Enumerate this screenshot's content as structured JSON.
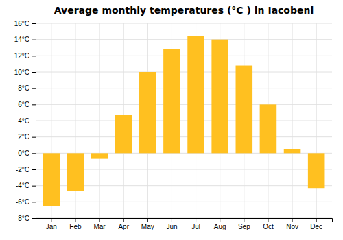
{
  "chart_data": {
    "type": "bar",
    "title": "Average monthly temperatures (°C ) in Iacobeni",
    "categories": [
      "Jan",
      "Feb",
      "Mar",
      "Apr",
      "May",
      "Jun",
      "Jul",
      "Aug",
      "Sep",
      "Oct",
      "Nov",
      "Dec"
    ],
    "values": [
      -6.5,
      -4.7,
      -0.7,
      4.7,
      10.0,
      12.8,
      14.4,
      14.0,
      10.8,
      6.0,
      0.5,
      -4.3
    ],
    "color": "#FFC020",
    "ylim": [
      -8,
      16
    ],
    "yticks": [
      {
        "value": -8,
        "label": "-8°C"
      },
      {
        "value": -6,
        "label": "-6°C"
      },
      {
        "value": -4,
        "label": "-4°C"
      },
      {
        "value": -2,
        "label": "-2°C"
      },
      {
        "value": 0,
        "label": "0°C"
      },
      {
        "value": 2,
        "label": "2°C"
      },
      {
        "value": 4,
        "label": "4°C"
      },
      {
        "value": 6,
        "label": "6°C"
      },
      {
        "value": 8,
        "label": "8°C"
      },
      {
        "value": 10,
        "label": "10°C"
      },
      {
        "value": 12,
        "label": "12°C"
      },
      {
        "value": 14,
        "label": "14°C"
      },
      {
        "value": 16,
        "label": "16°C"
      }
    ],
    "grid": true
  }
}
